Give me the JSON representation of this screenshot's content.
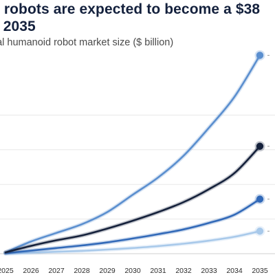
{
  "header": {
    "title_line1": "d robots are expected to become a $38",
    "title_line2": "y 2035",
    "subtitle": "bal humanoid robot market size ($ billion)"
  },
  "chart_data": {
    "type": "line",
    "title": "d robots are expected to become a $38 y 2035",
    "subtitle": "bal humanoid robot market size ($ billion)",
    "xlabel": "",
    "ylabel": "",
    "x": [
      "2025",
      "2026",
      "2027",
      "2028",
      "2029",
      "2030",
      "2031",
      "2032",
      "2033",
      "2034",
      "2035"
    ],
    "ylim": [
      0,
      40
    ],
    "yticks": [
      0,
      8,
      16,
      24,
      32
    ],
    "grid": true,
    "legend": "none",
    "series": [
      {
        "color": "#5b8fcf",
        "values": [
          0.3,
          2.8,
          4.8,
          6.8,
          9.6,
          13.6,
          17.6,
          22.6,
          29.1,
          36.2,
          45.8
        ]
      },
      {
        "color": "#15213b",
        "values": [
          0.3,
          1.8,
          3.1,
          4.2,
          5.8,
          7.6,
          9.6,
          11.9,
          14.9,
          18.6,
          24.8
        ]
      },
      {
        "color": "#3169b8",
        "values": [
          0.1,
          0.7,
          1.3,
          1.9,
          2.6,
          3.5,
          4.5,
          5.6,
          7.1,
          9.0,
          12.6
        ]
      },
      {
        "color": "#a8c9ea",
        "values": [
          0.0,
          0.2,
          0.45,
          0.65,
          0.95,
          1.3,
          1.75,
          2.3,
          3.0,
          3.9,
          5.2
        ]
      }
    ]
  }
}
